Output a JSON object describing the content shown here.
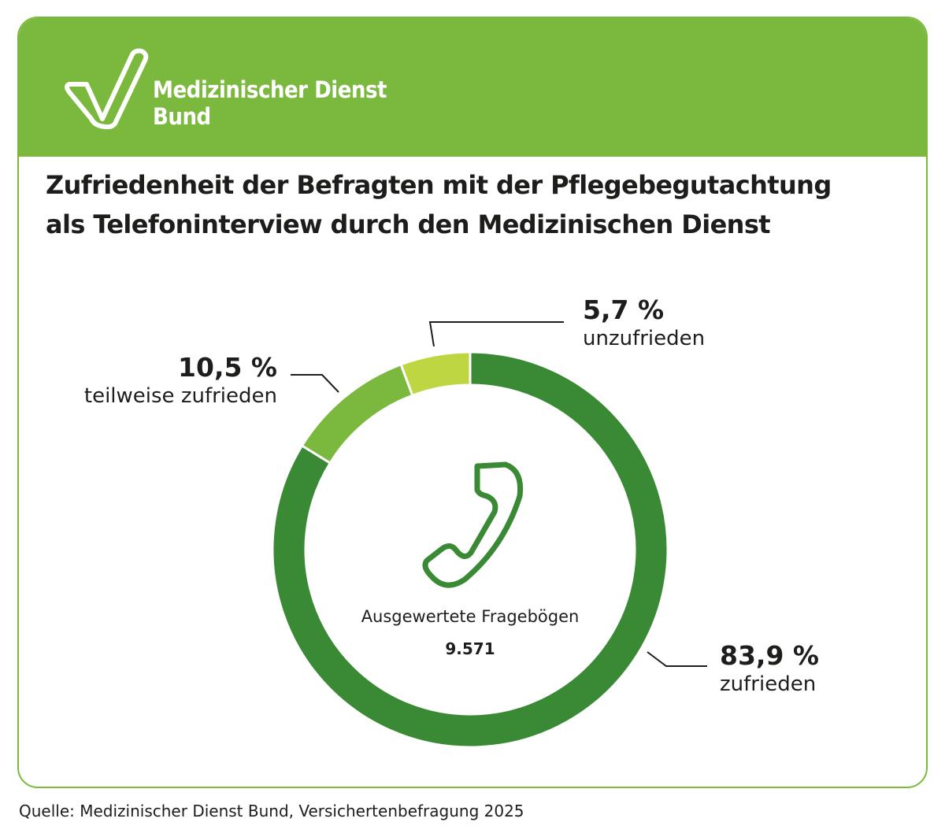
{
  "brand": {
    "name_line1": "Medizinischer Dienst",
    "name_line2": "Bund",
    "color": "#7ab93d"
  },
  "title_line1": "Zufriedenheit der Befragten mit der Pflegebegutachtung",
  "title_line2": "als Telefoninterview durch den Medizinischen Dienst",
  "chart_data": {
    "type": "pie",
    "variant": "donut",
    "start": "top, clockwise",
    "slices": [
      {
        "label": "zufrieden",
        "value": 83.9,
        "value_label": "83,9 %",
        "color": "#3a8a35"
      },
      {
        "label": "teilweise zufrieden",
        "value": 10.5,
        "value_label": "10,5 %",
        "color": "#7ab93d"
      },
      {
        "label": "unzufrieden",
        "value": 5.7,
        "value_label": "5,7 %",
        "color": "#bfd643"
      }
    ],
    "center_icon": "phone-icon",
    "center_label": "Ausgewertete Fragebögen",
    "center_value": "9.571"
  },
  "source": "Quelle: Medizinischer Dienst Bund, Versichertenbefragung 2025"
}
